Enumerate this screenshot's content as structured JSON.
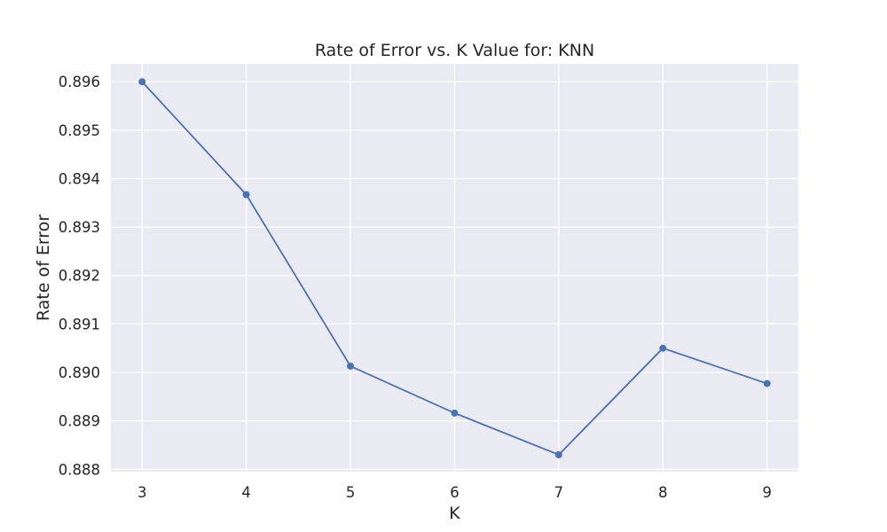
{
  "chart_data": {
    "type": "line",
    "title": "Rate of Error vs. K Value for: KNN",
    "xlabel": "K",
    "ylabel": "Rate of Error",
    "x": [
      3,
      4,
      5,
      6,
      7,
      8,
      9
    ],
    "series": [
      {
        "values": [
          0.896,
          0.89367,
          0.89013,
          0.88916,
          0.8883,
          0.8905,
          0.88977
        ]
      }
    ],
    "xlim": [
      2.7,
      9.3
    ],
    "ylim": [
      0.88795,
      0.89637
    ],
    "xticks": [
      "3",
      "4",
      "5",
      "6",
      "7",
      "8",
      "9"
    ],
    "yticks": [
      "0.888",
      "0.889",
      "0.890",
      "0.891",
      "0.892",
      "0.893",
      "0.894",
      "0.895",
      "0.896"
    ],
    "ytick_values": [
      0.888,
      0.889,
      0.89,
      0.891,
      0.892,
      0.893,
      0.894,
      0.895,
      0.896
    ],
    "grid": true,
    "marker": "circle",
    "colors": {
      "line": "#4c72b0",
      "background": "#eaeaf2",
      "grid": "#ffffff"
    }
  }
}
